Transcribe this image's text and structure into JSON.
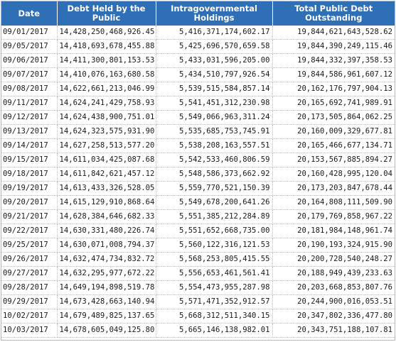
{
  "table": {
    "headers": {
      "date": "Date",
      "public": "Debt Held by the Public",
      "intragov": "Intragovernmental Holdings",
      "total": "Total Public Debt Outstanding"
    },
    "rows": [
      {
        "date": "09/01/2017",
        "public": "14,428,250,468,926.45",
        "intragov": "5,416,371,174,602.17",
        "total": "19,844,621,643,528.62"
      },
      {
        "date": "09/05/2017",
        "public": "14,418,693,678,455.88",
        "intragov": "5,425,696,570,659.58",
        "total": "19,844,390,249,115.46"
      },
      {
        "date": "09/06/2017",
        "public": "14,411,300,801,153.53",
        "intragov": "5,433,031,596,205.00",
        "total": "19,844,332,397,358.53"
      },
      {
        "date": "09/07/2017",
        "public": "14,410,076,163,680.58",
        "intragov": "5,434,510,797,926.54",
        "total": "19,844,586,961,607.12"
      },
      {
        "date": "09/08/2017",
        "public": "14,622,661,213,046.99",
        "intragov": "5,539,515,584,857.14",
        "total": "20,162,176,797,904.13"
      },
      {
        "date": "09/11/2017",
        "public": "14,624,241,429,758.93",
        "intragov": "5,541,451,312,230.98",
        "total": "20,165,692,741,989.91"
      },
      {
        "date": "09/12/2017",
        "public": "14,624,438,900,751.01",
        "intragov": "5,549,066,963,311.24",
        "total": "20,173,505,864,062.25"
      },
      {
        "date": "09/13/2017",
        "public": "14,624,323,575,931.90",
        "intragov": "5,535,685,753,745.91",
        "total": "20,160,009,329,677.81"
      },
      {
        "date": "09/14/2017",
        "public": "14,627,258,513,577.20",
        "intragov": "5,538,208,163,557.51",
        "total": "20,165,466,677,134.71"
      },
      {
        "date": "09/15/2017",
        "public": "14,611,034,425,087.68",
        "intragov": "5,542,533,460,806.59",
        "total": "20,153,567,885,894.27"
      },
      {
        "date": "09/18/2017",
        "public": "14,611,842,621,457.12",
        "intragov": "5,548,586,373,662.92",
        "total": "20,160,428,995,120.04"
      },
      {
        "date": "09/19/2017",
        "public": "14,613,433,326,528.05",
        "intragov": "5,559,770,521,150.39",
        "total": "20,173,203,847,678.44"
      },
      {
        "date": "09/20/2017",
        "public": "14,615,129,910,868.64",
        "intragov": "5,549,678,200,641.26",
        "total": "20,164,808,111,509.90"
      },
      {
        "date": "09/21/2017",
        "public": "14,628,384,646,682.33",
        "intragov": "5,551,385,212,284.89",
        "total": "20,179,769,858,967.22"
      },
      {
        "date": "09/22/2017",
        "public": "14,630,331,480,226.74",
        "intragov": "5,551,652,668,735.00",
        "total": "20,181,984,148,961.74"
      },
      {
        "date": "09/25/2017",
        "public": "14,630,071,008,794.37",
        "intragov": "5,560,122,316,121.53",
        "total": "20,190,193,324,915.90"
      },
      {
        "date": "09/26/2017",
        "public": "14,632,474,734,832.72",
        "intragov": "5,568,253,805,415.55",
        "total": "20,200,728,540,248.27"
      },
      {
        "date": "09/27/2017",
        "public": "14,632,295,977,672.22",
        "intragov": "5,556,653,461,561.41",
        "total": "20,188,949,439,233.63"
      },
      {
        "date": "09/28/2017",
        "public": "14,649,194,898,519.78",
        "intragov": "5,554,473,955,287.98",
        "total": "20,203,668,853,807.76"
      },
      {
        "date": "09/29/2017",
        "public": "14,673,428,663,140.94",
        "intragov": "5,571,471,352,912.57",
        "total": "20,244,900,016,053.51"
      },
      {
        "date": "10/02/2017",
        "public": "14,679,489,825,137.65",
        "intragov": "5,668,312,511,340.15",
        "total": "20,347,802,336,477.80"
      },
      {
        "date": "10/03/2017",
        "public": "14,678,605,049,125.80",
        "intragov": "5,665,146,138,982.01",
        "total": "20,343,751,188,107.81"
      }
    ]
  }
}
